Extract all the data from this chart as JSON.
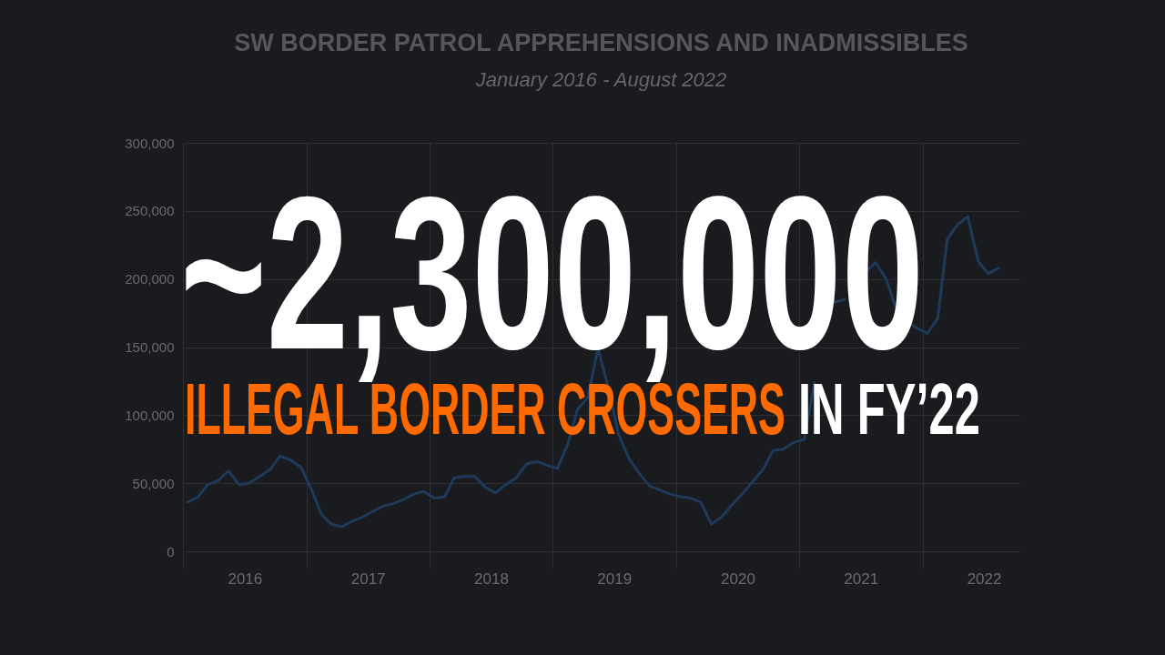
{
  "chart_data": {
    "type": "line",
    "title": "SW BORDER PATROL APPREHENSIONS AND INADMISSIBLES",
    "subtitle": "January 2016 - August 2022",
    "annotations": [
      "~2,300,000",
      "ILLEGAL BORDER CROSSERS",
      "IN FY’22"
    ],
    "x": [
      "2016-01-15",
      "2016-02-15",
      "2016-03-15",
      "2016-04-15",
      "2016-05-15",
      "2016-06-15",
      "2016-07-15",
      "2016-08-15",
      "2016-09-15",
      "2016-10-15",
      "2016-11-15",
      "2016-12-15",
      "2017-01-15",
      "2017-02-15",
      "2017-03-15",
      "2017-04-15",
      "2017-05-15",
      "2017-06-15",
      "2017-07-15",
      "2017-08-15",
      "2017-09-15",
      "2017-10-15",
      "2017-11-15",
      "2017-12-15",
      "2018-01-15",
      "2018-02-15",
      "2018-03-15",
      "2018-04-15",
      "2018-05-15",
      "2018-06-15",
      "2018-07-15",
      "2018-08-15",
      "2018-09-15",
      "2018-10-15",
      "2018-11-15",
      "2018-12-15",
      "2019-01-15",
      "2019-02-15",
      "2019-03-15",
      "2019-04-15",
      "2019-05-15",
      "2019-06-15",
      "2019-07-15",
      "2019-08-15",
      "2019-09-15",
      "2019-10-15",
      "2019-11-15",
      "2019-12-15",
      "2020-01-15",
      "2020-02-15",
      "2020-03-15",
      "2020-04-15",
      "2020-05-15",
      "2020-06-15",
      "2020-07-15",
      "2020-08-15",
      "2020-09-15",
      "2020-10-15",
      "2020-11-15",
      "2020-12-15",
      "2021-01-15",
      "2021-02-15",
      "2021-03-15",
      "2021-04-15",
      "2021-05-15",
      "2021-06-15",
      "2021-07-15",
      "2021-08-15",
      "2021-09-15",
      "2021-10-15",
      "2021-11-15",
      "2021-12-15",
      "2022-01-15",
      "2022-02-15",
      "2022-03-15",
      "2022-04-15",
      "2022-05-15",
      "2022-06-15",
      "2022-07-15",
      "2022-08-15"
    ],
    "series": [
      {
        "color": "#1d3a5a",
        "values": [
          36000,
          40000,
          49000,
          52000,
          59000,
          49000,
          50000,
          55000,
          60000,
          70000,
          67000,
          62000,
          46000,
          27000,
          20000,
          18000,
          22000,
          25000,
          29000,
          33000,
          35000,
          38000,
          42000,
          44000,
          39000,
          40000,
          54000,
          55000,
          55000,
          47000,
          43000,
          49000,
          54000,
          64000,
          66000,
          63000,
          61000,
          79000,
          104000,
          113000,
          149000,
          120000,
          86000,
          68000,
          57000,
          48000,
          45000,
          42000,
          40000,
          39000,
          36000,
          20000,
          25000,
          34000,
          42000,
          51000,
          60000,
          74000,
          75000,
          80000,
          82000,
          124000,
          null,
          183000,
          185000,
          null,
          205000,
          212000,
          200000,
          178000,
          169000,
          164000,
          160000,
          171000,
          229000,
          240000,
          246000,
          213000,
          204000,
          208000
        ]
      }
    ],
    "xlim": [
      "2016-01-01",
      "2022-10-15"
    ],
    "xticks": [
      {
        "value": "2016-01-01",
        "label": null
      },
      {
        "value": "2016-07-02",
        "label": "2016"
      },
      {
        "value": "2017-01-01",
        "label": null
      },
      {
        "value": "2017-07-02",
        "label": "2017"
      },
      {
        "value": "2018-01-01",
        "label": null
      },
      {
        "value": "2018-07-02",
        "label": "2018"
      },
      {
        "value": "2019-01-01",
        "label": null
      },
      {
        "value": "2019-07-02",
        "label": "2019"
      },
      {
        "value": "2020-01-01",
        "label": null
      },
      {
        "value": "2020-07-02",
        "label": "2020"
      },
      {
        "value": "2021-01-01",
        "label": null
      },
      {
        "value": "2021-07-02",
        "label": "2021"
      },
      {
        "value": "2022-01-01",
        "label": null
      },
      {
        "value": "2022-07-02",
        "label": "2022"
      }
    ],
    "ylim": [
      0,
      300000
    ],
    "yticks": [
      0,
      {
        "value": 50000,
        "label": "50,000"
      },
      {
        "value": 100000,
        "label": "100,000"
      },
      {
        "value": 150000,
        "label": "150,000"
      },
      {
        "value": 200000,
        "label": "200,000"
      },
      {
        "value": 250000,
        "label": "250,000"
      },
      {
        "value": 300000,
        "label": "300,000"
      }
    ],
    "grid": true
  }
}
